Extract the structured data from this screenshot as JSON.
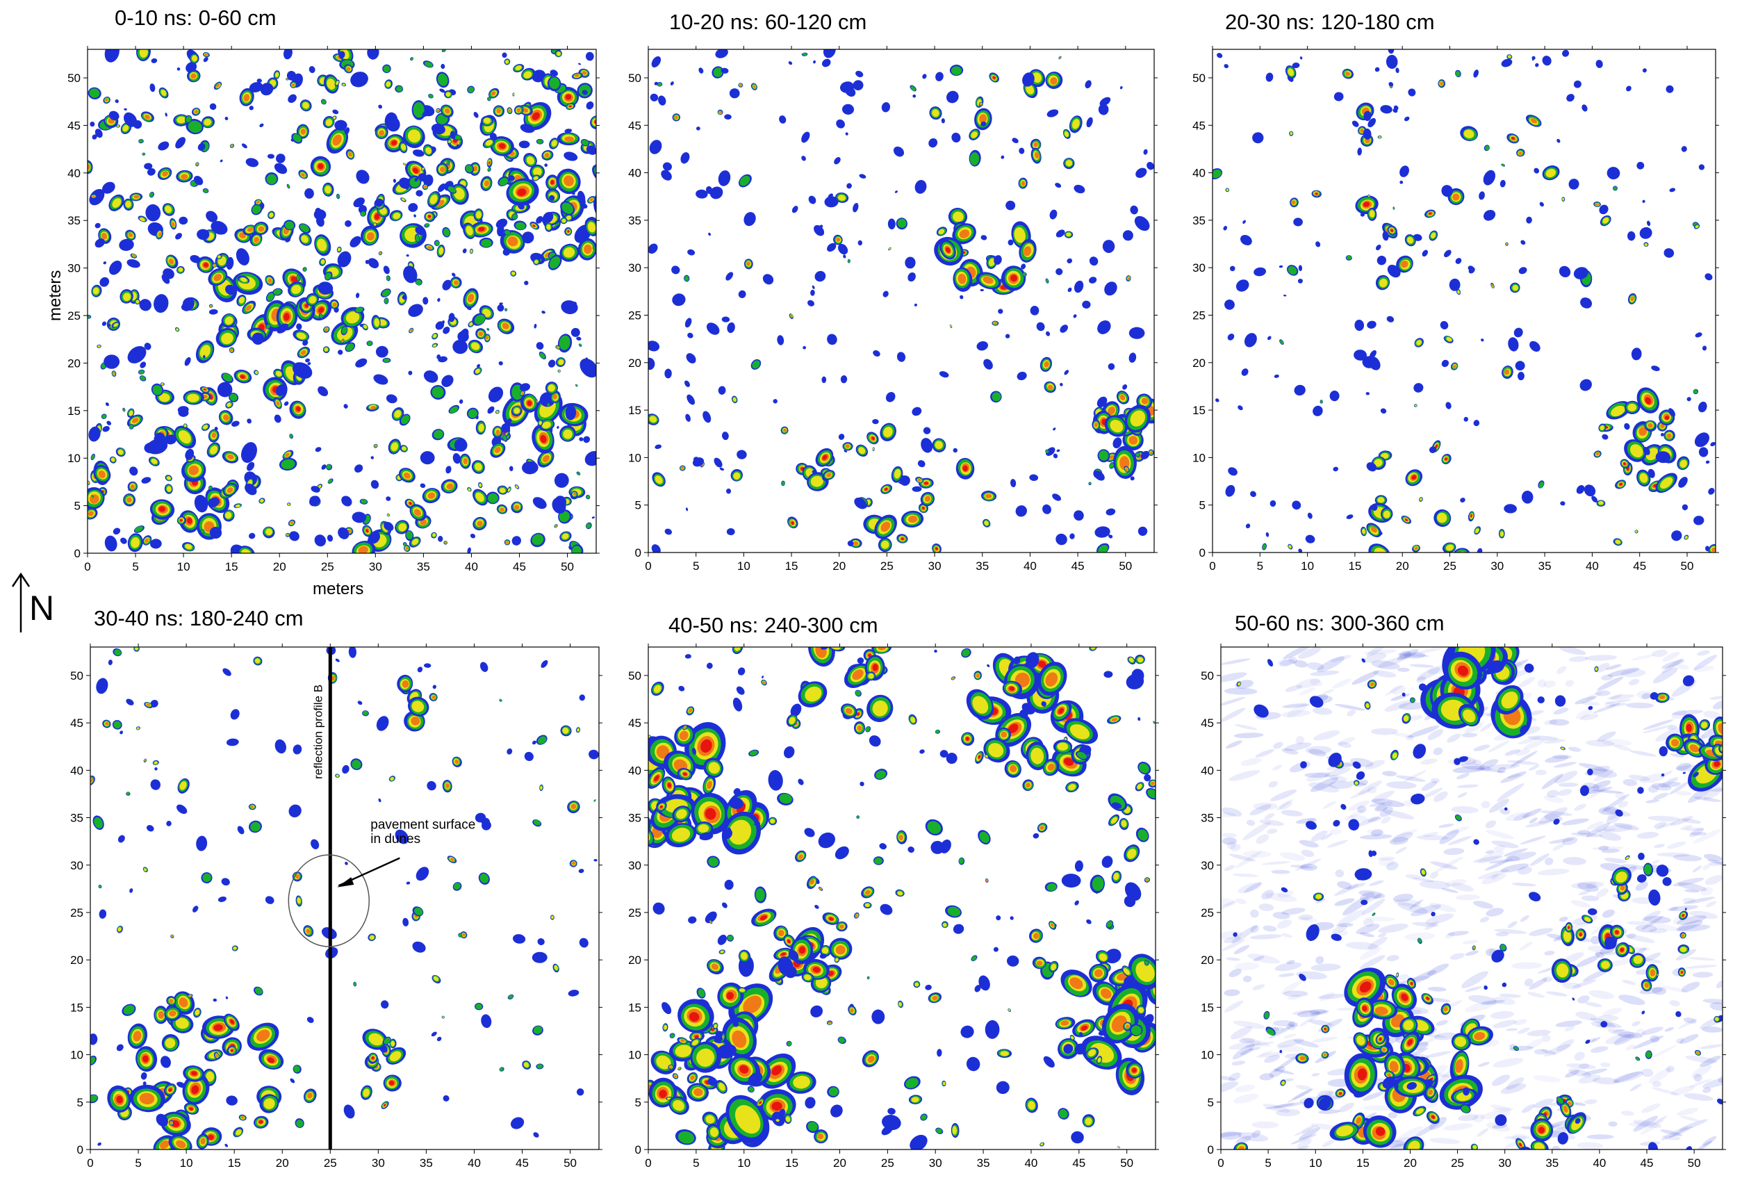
{
  "figure": {
    "ylabel": "meters",
    "xlabel": "meters",
    "north_label": "N",
    "colors": {
      "red": "#e8150f",
      "orange": "#f07a16",
      "yellow": "#e8e21a",
      "green": "#18b02a",
      "blue": "#1c2fd6",
      "background": "#ffffff"
    }
  },
  "panels": [
    {
      "title": "0-10 ns: 0-60 cm",
      "style": "dense"
    },
    {
      "title": "10-20 ns: 60-120 cm",
      "style": "sparse"
    },
    {
      "title": "20-30 ns: 120-180 cm",
      "style": "sparse"
    },
    {
      "title": "30-40 ns: 180-240 cm",
      "style": "sparse",
      "annotations": {
        "profile_label": "reflection profile B",
        "callout_line1": "pavement surface",
        "callout_line2": "in dunes"
      }
    },
    {
      "title": "40-50 ns: 240-300 cm",
      "style": "large"
    },
    {
      "title": "50-60 ns: 300-360 cm",
      "style": "haze"
    }
  ],
  "chart_data": {
    "type": "heatmap",
    "x_ticks": [
      "0",
      "5",
      "10",
      "15",
      "20",
      "25",
      "30",
      "35",
      "40",
      "45",
      "50"
    ],
    "y_ticks": [
      "0",
      "5",
      "10",
      "15",
      "20",
      "25",
      "30",
      "35",
      "40",
      "45",
      "50"
    ],
    "xlim": [
      0,
      53
    ],
    "ylim": [
      0,
      53
    ],
    "grid": false,
    "color_scale": [
      "white",
      "blue",
      "green",
      "yellow",
      "orange",
      "red"
    ]
  }
}
